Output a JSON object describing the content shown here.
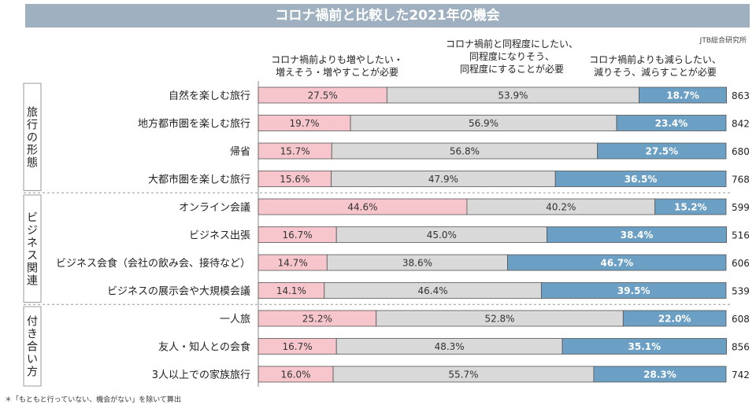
{
  "title": "コロナ禍前と比較した2021年の機会",
  "source": "JTB総合研究所",
  "footnote": "＊「もともと行っていない、機会がない」を除いて算出",
  "column_headers": {
    "increase": "コロナ禍前よりも増やしたい・\n増えそう・増やすことが必要",
    "same": "コロナ禍前と同程度にしたい、\n同程度になりそう、\n同程度にすることが必要",
    "decrease": "コロナ禍前よりも減らしたい、\n減りそう、減らすことが必要"
  },
  "colors": {
    "increase": "#f7c6cc",
    "same": "#d9d9d9",
    "decrease": "#6b9fc3",
    "title_bg": "#9fb1c1"
  },
  "chart_data": {
    "type": "bar",
    "orientation": "horizontal",
    "stacked": true,
    "percent": true,
    "series": [
      {
        "name": "コロナ禍前よりも増やしたい・増えそう・増やすことが必要",
        "values": [
          27.5,
          19.7,
          15.7,
          15.6,
          44.6,
          16.7,
          14.7,
          14.1,
          25.2,
          16.7,
          16.0
        ]
      },
      {
        "name": "コロナ禍前と同程度にしたい、同程度になりそう、同程度にすることが必要",
        "values": [
          53.9,
          56.9,
          56.8,
          47.9,
          40.2,
          45.0,
          38.6,
          46.4,
          52.8,
          48.3,
          55.7
        ]
      },
      {
        "name": "コロナ禍前よりも減らしたい、減りそう、減らすことが必要",
        "values": [
          18.7,
          23.4,
          27.5,
          36.5,
          15.2,
          38.4,
          46.7,
          39.5,
          22.0,
          35.1,
          28.3
        ]
      }
    ],
    "categories": [
      "自然を楽しむ旅行",
      "地方都市圏を楽しむ旅行",
      "帰省",
      "大都市圏を楽しむ旅行",
      "オンライン会議",
      "ビジネス出張",
      "ビジネス会食（会社の飲み会、接待など）",
      "ビジネスの展示会や大規模会議",
      "一人旅",
      "友人・知人との会食",
      "3人以上での家族旅行"
    ],
    "n": [
      863,
      842,
      680,
      768,
      599,
      516,
      606,
      539,
      608,
      856,
      742
    ],
    "groups": [
      {
        "label": "旅行の形態",
        "rows": [
          0,
          3
        ]
      },
      {
        "label": "ビジネス関連",
        "rows": [
          4,
          7
        ]
      },
      {
        "label": "付き合い方",
        "rows": [
          8,
          10
        ]
      }
    ]
  }
}
